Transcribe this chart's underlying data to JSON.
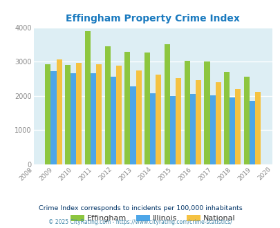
{
  "title": "Effingham Property Crime Index",
  "title_color": "#1a7abf",
  "years": [
    2009,
    2010,
    2011,
    2012,
    2013,
    2014,
    2015,
    2016,
    2017,
    2018,
    2019
  ],
  "effingham": [
    2920,
    2900,
    3900,
    3450,
    3280,
    3260,
    3510,
    3020,
    3010,
    2700,
    2560
  ],
  "illinois": [
    2720,
    2660,
    2660,
    2560,
    2270,
    2080,
    2000,
    2060,
    2010,
    1950,
    1860
  ],
  "national": [
    3060,
    2960,
    2930,
    2890,
    2730,
    2610,
    2510,
    2460,
    2390,
    2190,
    2120
  ],
  "effingham_color": "#8dc63f",
  "illinois_color": "#4da6e8",
  "national_color": "#f5c242",
  "xlim": [
    2008,
    2020
  ],
  "ylim": [
    0,
    4000
  ],
  "yticks": [
    0,
    1000,
    2000,
    3000,
    4000
  ],
  "background_color": "#ddeef4",
  "outer_background": "#ffffff",
  "legend_labels": [
    "Effingham",
    "Illinois",
    "National"
  ],
  "footnote1": "Crime Index corresponds to incidents per 100,000 inhabitants",
  "footnote2": "© 2025 CityRating.com - https://www.cityrating.com/crime-statistics/",
  "footnote1_color": "#003366",
  "footnote2_color": "#4488aa",
  "bar_width": 0.28
}
